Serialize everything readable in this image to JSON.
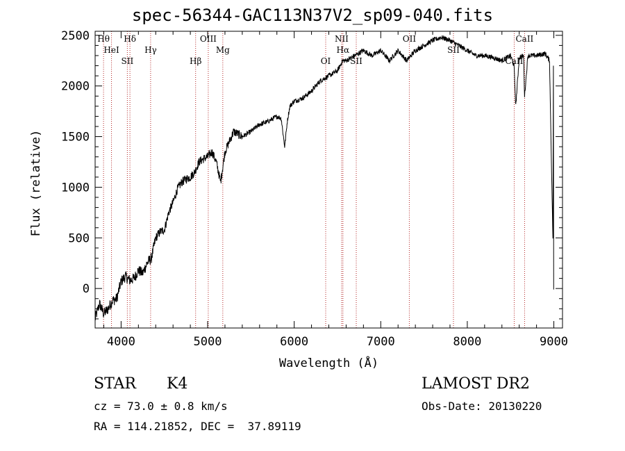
{
  "title": "spec-56344-GAC113N37V2_sp09-040.fits",
  "info": {
    "class": "STAR",
    "subclass": "K4",
    "survey": "LAMOST DR2",
    "cz": "cz = 73.0 ± 0.8 km/s",
    "obs_date": "Obs-Date: 20130220",
    "radec": "RA = 114.21852, DEC =  37.89119"
  },
  "chart_data": {
    "type": "line",
    "title": "spec-56344-GAC113N37V2_sp09-040.fits",
    "xlabel": "Wavelength (Å)",
    "ylabel": "Flux (relative)",
    "xlim": [
      3700,
      9100
    ],
    "ylim": [
      -390,
      2540
    ],
    "xticks": [
      4000,
      5000,
      6000,
      7000,
      8000,
      9000
    ],
    "yticks": [
      0,
      500,
      1000,
      1500,
      2000,
      2500
    ],
    "grid": false,
    "series": [
      {
        "x": [
          3700,
          3750,
          3800,
          3850,
          3900,
          3950,
          4000,
          4050,
          4100,
          4150,
          4200,
          4250,
          4300,
          4350,
          4400,
          4450,
          4500,
          4550,
          4600,
          4650,
          4700,
          4750,
          4800,
          4850,
          4900,
          4950,
          5000,
          5050,
          5100,
          5150,
          5200,
          5300,
          5400,
          5500,
          5600,
          5700,
          5800,
          5850,
          5890,
          5920,
          5950,
          6000,
          6100,
          6200,
          6300,
          6400,
          6500,
          6560,
          6600,
          6700,
          6800,
          6900,
          7000,
          7100,
          7150,
          7200,
          7300,
          7400,
          7500,
          7600,
          7700,
          7800,
          7900,
          8000,
          8100,
          8200,
          8300,
          8400,
          8500,
          8540,
          8560,
          8600,
          8650,
          8662,
          8700,
          8800,
          8900,
          8950,
          9000
        ],
        "values": [
          -300,
          -150,
          -250,
          -200,
          -120,
          -100,
          70,
          120,
          80,
          100,
          180,
          150,
          250,
          300,
          500,
          560,
          580,
          750,
          850,
          980,
          1050,
          1080,
          1100,
          1150,
          1250,
          1280,
          1300,
          1350,
          1250,
          1050,
          1350,
          1550,
          1500,
          1550,
          1620,
          1650,
          1700,
          1680,
          1400,
          1650,
          1800,
          1850,
          1880,
          1950,
          2050,
          2100,
          2150,
          2250,
          2250,
          2300,
          2350,
          2300,
          2350,
          2250,
          2300,
          2350,
          2250,
          2350,
          2400,
          2450,
          2480,
          2450,
          2400,
          2350,
          2300,
          2300,
          2280,
          2250,
          2300,
          2200,
          1800,
          2280,
          2300,
          1900,
          2300,
          2300,
          2320,
          2250,
          -10
        ]
      }
    ],
    "lines": [
      {
        "name": "Hθ",
        "wl": 3797
      },
      {
        "name": "HeI",
        "wl": 3889
      },
      {
        "name": "SII",
        "wl": 4072
      },
      {
        "name": "Hδ",
        "wl": 4102
      },
      {
        "name": "Hγ",
        "wl": 4341
      },
      {
        "name": "Hβ",
        "wl": 4861
      },
      {
        "name": "OIII",
        "wl": 5007
      },
      {
        "name": "Mg",
        "wl": 5175
      },
      {
        "name": "OI",
        "wl": 6364
      },
      {
        "name": "NII",
        "wl": 6548
      },
      {
        "name": "Hα",
        "wl": 6563
      },
      {
        "name": "SII",
        "wl": 6717
      },
      {
        "name": "OII",
        "wl": 7330
      },
      {
        "name": "SII",
        "wl": 7840
      },
      {
        "name": "CaII",
        "wl": 8542
      },
      {
        "name": "CaII",
        "wl": 8662
      }
    ]
  }
}
